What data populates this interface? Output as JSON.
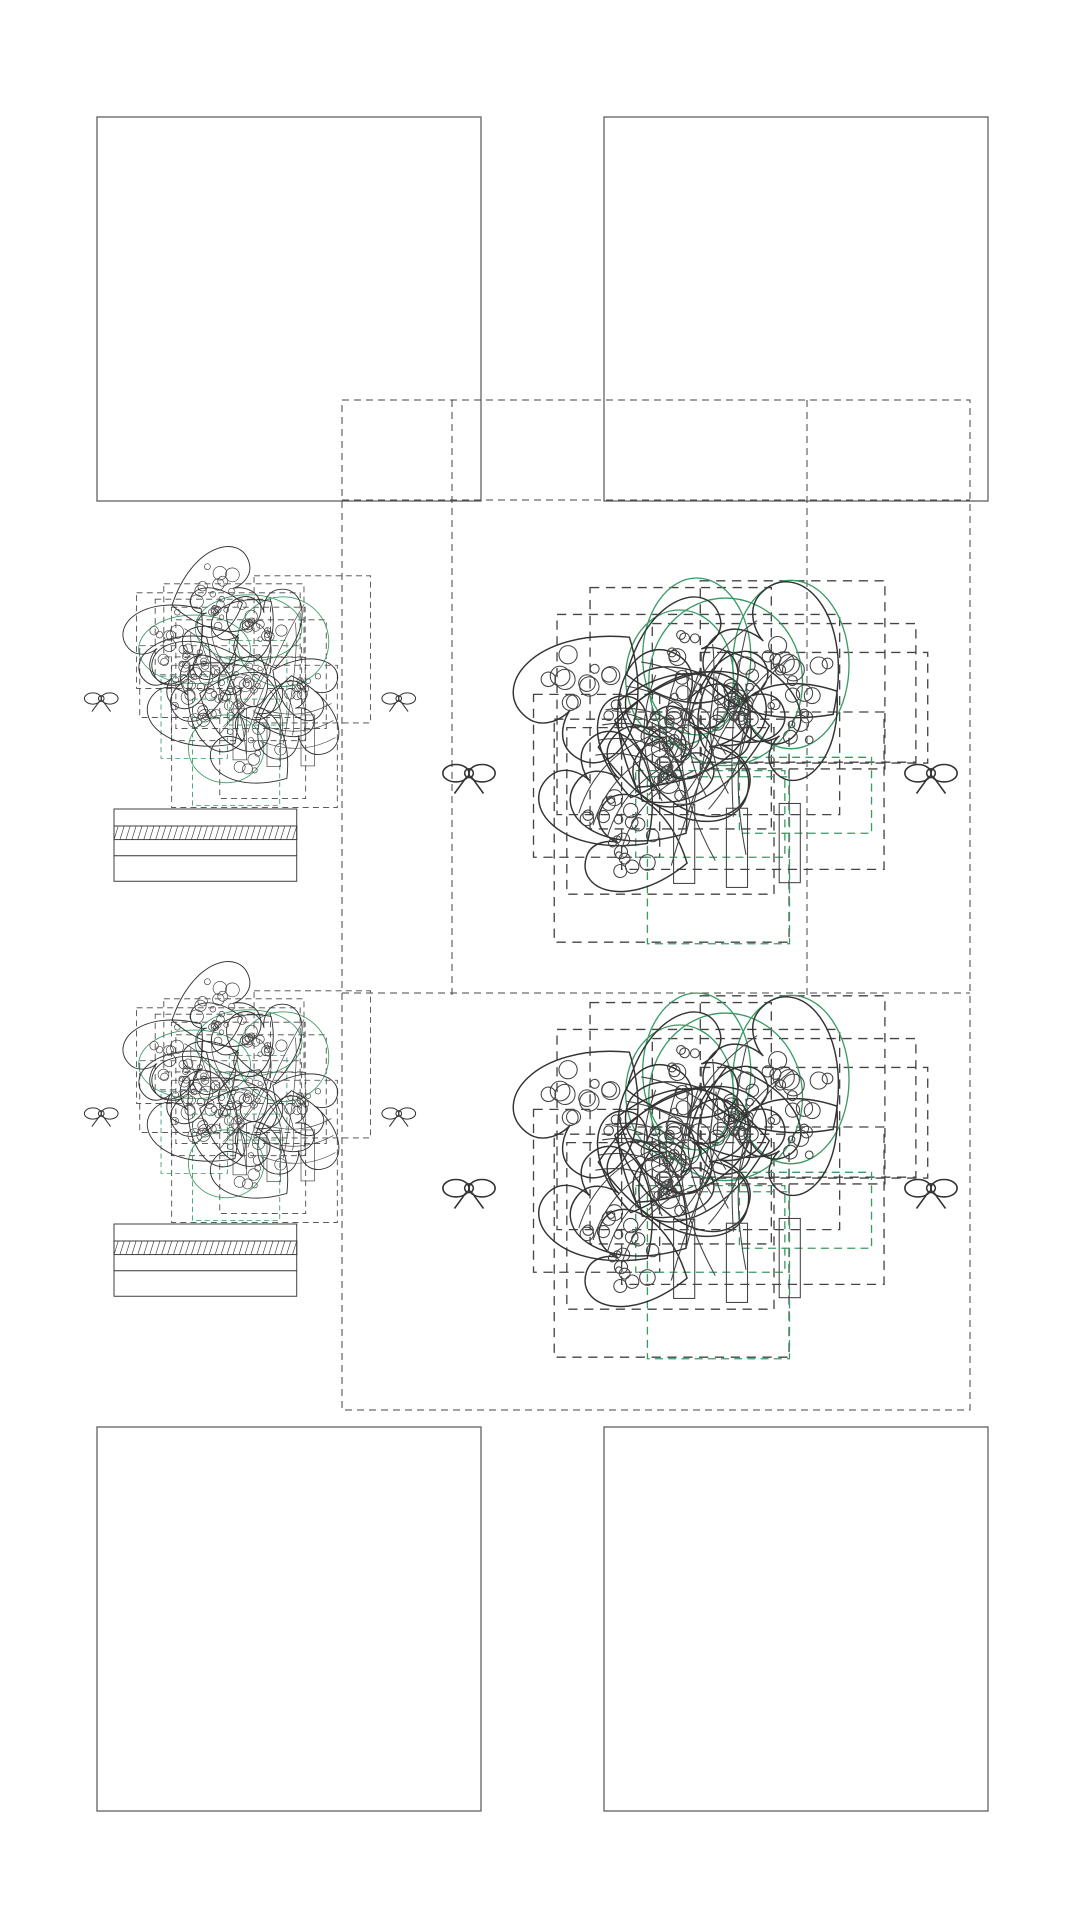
{
  "sheet": {
    "background": "#ffffff",
    "line_color": "#333333",
    "guide_color": "#3a9a64"
  },
  "panels": [
    {
      "id": "top-left-panel"
    },
    {
      "id": "top-right-panel"
    },
    {
      "id": "bottom-left-panel"
    },
    {
      "id": "bottom-right-panel"
    }
  ],
  "artwork": {
    "motifs": [
      "heart-leaf",
      "polka-dot",
      "striped-leaf",
      "ribbon-bow",
      "cross-hatch-bar"
    ],
    "assemblies": [
      {
        "id": "small-tree-upper"
      },
      {
        "id": "small-tree-lower"
      },
      {
        "id": "large-tree-upper"
      },
      {
        "id": "large-tree-lower"
      }
    ]
  }
}
